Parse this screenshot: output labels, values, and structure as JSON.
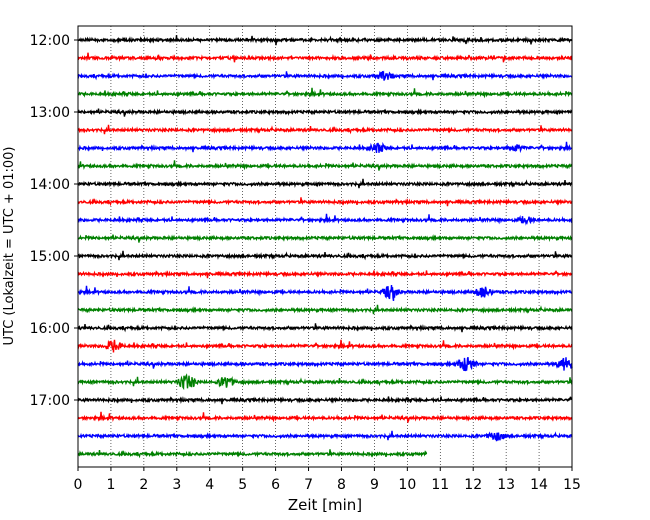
{
  "chart_data": {
    "type": "line",
    "xlabel": "Zeit  [min]",
    "ylabel": "UTC (Lokalzeit = UTC + 01:00)",
    "xlim": [
      0,
      15
    ],
    "x_ticks": [
      "0",
      "1",
      "2",
      "3",
      "4",
      "5",
      "6",
      "7",
      "8",
      "9",
      "10",
      "11",
      "12",
      "13",
      "14",
      "15"
    ],
    "y_ticks": [
      "12:00",
      "13:00",
      "14:00",
      "15:00",
      "16:00",
      "17:00"
    ],
    "vertical_grid": "dotted",
    "colors": [
      "#000000",
      "#ff0000",
      "#0000ff",
      "#008000"
    ],
    "trace_interval_min": 15,
    "trace_starts": [
      "12:00",
      "12:15",
      "12:30",
      "12:45",
      "13:00",
      "13:15",
      "13:30",
      "13:45",
      "14:00",
      "14:15",
      "14:30",
      "14:45",
      "15:00",
      "15:15",
      "15:30",
      "15:45",
      "16:00",
      "16:15",
      "16:30",
      "16:45",
      "17:00",
      "17:15",
      "17:30",
      "17:45"
    ],
    "last_trace_end_min": 10.6,
    "events": [
      {
        "trace": 2,
        "minute": 9.3,
        "amp": 0.8
      },
      {
        "trace": 6,
        "minute": 9.1,
        "amp": 0.9
      },
      {
        "trace": 6,
        "minute": 13.3,
        "amp": 0.6
      },
      {
        "trace": 10,
        "minute": 13.6,
        "amp": 0.6
      },
      {
        "trace": 14,
        "minute": 9.5,
        "amp": 1.3
      },
      {
        "trace": 14,
        "minute": 12.3,
        "amp": 1.1
      },
      {
        "trace": 17,
        "minute": 1.1,
        "amp": 1.1
      },
      {
        "trace": 18,
        "minute": 11.8,
        "amp": 1.7
      },
      {
        "trace": 18,
        "minute": 14.8,
        "amp": 1.3
      },
      {
        "trace": 19,
        "minute": 3.3,
        "amp": 1.5
      },
      {
        "trace": 19,
        "minute": 4.5,
        "amp": 1.1
      },
      {
        "trace": 22,
        "minute": 12.7,
        "amp": 0.9
      }
    ]
  }
}
